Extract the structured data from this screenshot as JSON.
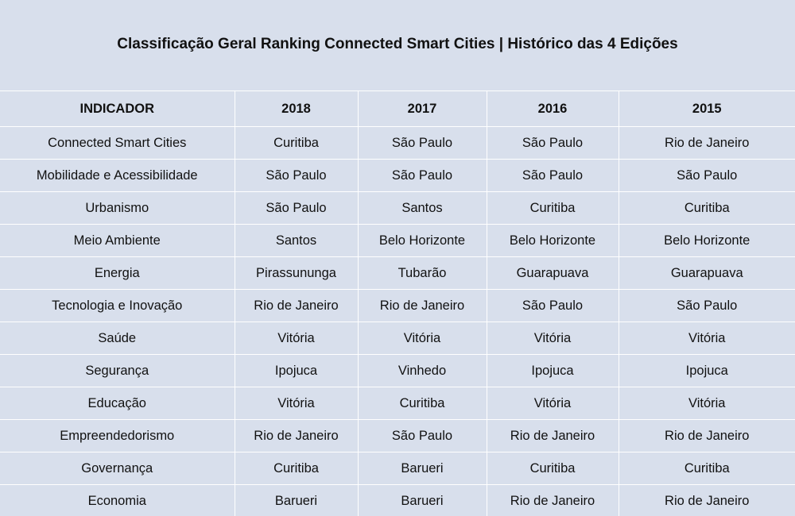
{
  "title": "Classificação Geral Ranking Connected Smart Cities | Histórico das 4 Edições",
  "table": {
    "headers": [
      "INDICADOR",
      "2018",
      "2017",
      "2016",
      "2015"
    ],
    "rows": [
      [
        "Connected Smart Cities",
        "Curitiba",
        "São Paulo",
        "São Paulo",
        "Rio de Janeiro"
      ],
      [
        "Mobilidade e Acessibilidade",
        "São Paulo",
        "São Paulo",
        "São Paulo",
        "São Paulo"
      ],
      [
        "Urbanismo",
        "São Paulo",
        "Santos",
        "Curitiba",
        "Curitiba"
      ],
      [
        "Meio Ambiente",
        "Santos",
        "Belo Horizonte",
        "Belo Horizonte",
        "Belo Horizonte"
      ],
      [
        "Energia",
        "Pirassununga",
        "Tubarão",
        "Guarapuava",
        "Guarapuava"
      ],
      [
        "Tecnologia e Inovação",
        "Rio de Janeiro",
        "Rio de Janeiro",
        "São Paulo",
        "São Paulo"
      ],
      [
        "Saúde",
        "Vitória",
        "Vitória",
        "Vitória",
        "Vitória"
      ],
      [
        "Segurança",
        "Ipojuca",
        "Vinhedo",
        "Ipojuca",
        "Ipojuca"
      ],
      [
        "Educação",
        "Vitória",
        "Curitiba",
        "Vitória",
        "Vitória"
      ],
      [
        "Empreendedorismo",
        "Rio de Janeiro",
        "São Paulo",
        "Rio de Janeiro",
        "Rio de Janeiro"
      ],
      [
        "Governança",
        "Curitiba",
        "Barueri",
        "Curitiba",
        "Curitiba"
      ],
      [
        "Economia",
        "Barueri",
        "Barueri",
        "Rio de Janeiro",
        "Rio de Janeiro"
      ]
    ]
  },
  "colors": {
    "background": "#d8dfec",
    "grid_lines": "#ffffff",
    "text": "#111111"
  }
}
